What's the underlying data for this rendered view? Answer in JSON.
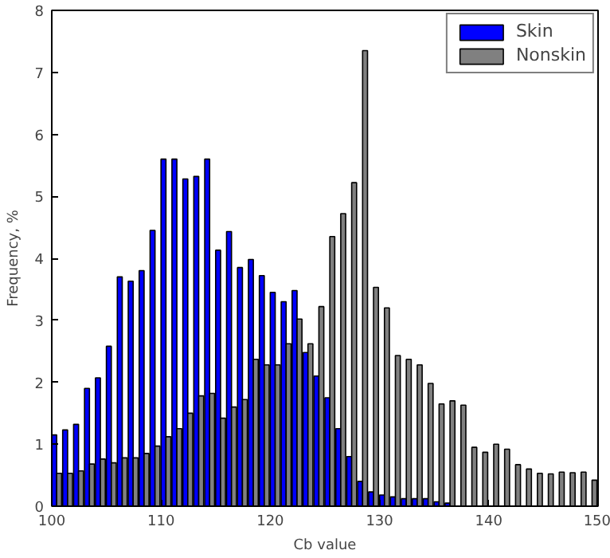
{
  "chart_data": {
    "type": "histogram",
    "xlabel": "Cb value",
    "ylabel": "Frequency, %",
    "bins": [
      100,
      101,
      102,
      103,
      104,
      105,
      106,
      107,
      108,
      109,
      110,
      111,
      112,
      113,
      114,
      115,
      116,
      117,
      118,
      119,
      120,
      121,
      122,
      123,
      124,
      125,
      126,
      127,
      128,
      129,
      130,
      131,
      132,
      133,
      134,
      135,
      136,
      137,
      138,
      139,
      140,
      141,
      142,
      143,
      144,
      145,
      146,
      147,
      148,
      149,
      150
    ],
    "series": [
      {
        "name": "Skin",
        "color": "#0000ff",
        "values": [
          1.15,
          1.23,
          1.32,
          1.9,
          2.07,
          2.58,
          3.7,
          3.63,
          3.8,
          4.45,
          5.6,
          5.6,
          5.28,
          5.32,
          5.6,
          4.13,
          4.43,
          3.85,
          3.98,
          3.72,
          3.45,
          3.3,
          3.48,
          2.48,
          2.1,
          1.75,
          1.25,
          0.8,
          0.4,
          0.23,
          0.18,
          0.15,
          0.12,
          0.12,
          0.12,
          0.07,
          0.05,
          null,
          null,
          null,
          0,
          0,
          0,
          0,
          0,
          0,
          0,
          0,
          0,
          0
        ]
      },
      {
        "name": "Nonskin",
        "color": "#808080",
        "values": [
          0.53,
          0.53,
          0.57,
          0.68,
          0.76,
          0.7,
          0.78,
          0.78,
          0.85,
          0.97,
          1.12,
          1.25,
          1.5,
          1.78,
          1.82,
          1.42,
          1.6,
          1.72,
          2.37,
          2.28,
          2.28,
          2.62,
          3.02,
          2.62,
          3.22,
          4.35,
          4.72,
          5.22,
          7.35,
          3.53,
          3.2,
          2.43,
          2.37,
          2.28,
          1.98,
          1.65,
          1.7,
          1.63,
          0.95,
          0.87,
          1.0,
          0.92,
          0.67,
          0.6,
          0.53,
          0.52,
          0.55,
          0.54,
          0.55,
          0.42
        ]
      }
    ],
    "xlim": [
      100,
      150
    ],
    "xticks": [
      100,
      110,
      120,
      130,
      140,
      150
    ],
    "ylim": [
      0,
      8
    ],
    "yticks": [
      0,
      1,
      2,
      3,
      4,
      5,
      6,
      7,
      8
    ],
    "grid": false,
    "legend": "top right"
  }
}
